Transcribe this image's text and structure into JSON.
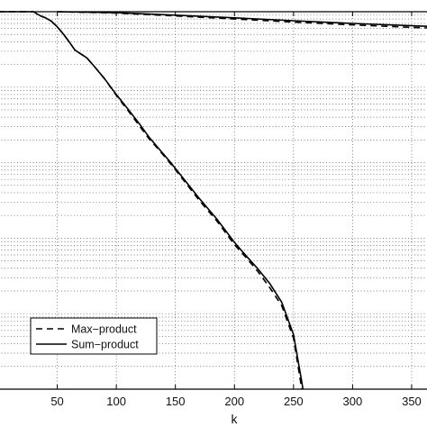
{
  "chart_data": {
    "type": "line",
    "title": "",
    "xlabel": "k",
    "ylabel": "",
    "xlim": [
      0,
      363
    ],
    "xticks": [
      50,
      100,
      150,
      200,
      250,
      300,
      350
    ],
    "xtick_labels": [
      "50",
      "100",
      "150",
      "200",
      "250",
      "300",
      "350"
    ],
    "y_scale": "log",
    "ylim": [
      1e-05,
      1
    ],
    "grid": true,
    "legend_position": "bottom-left",
    "series": [
      {
        "name": "Max−product",
        "style": "dashed",
        "color": "#000000",
        "x": [
          0,
          30,
          33,
          36,
          40,
          45,
          50,
          55,
          60,
          65,
          75,
          80,
          90,
          100,
          110,
          120,
          128,
          135,
          145,
          155,
          170,
          185,
          200,
          210,
          220,
          230,
          240,
          250,
          256,
          257
        ],
        "y": [
          1.0,
          1.0,
          0.93,
          0.88,
          0.83,
          0.75,
          0.63,
          0.51,
          0.4,
          0.31,
          0.245,
          0.2,
          0.13,
          0.078,
          0.049,
          0.03,
          0.0205,
          0.0155,
          0.0101,
          0.0064,
          0.0032,
          0.0017,
          0.00082,
          0.00055,
          0.00036,
          0.00022,
          0.000128,
          4.75e-05,
          1.25e-05,
          1e-05
        ]
      },
      {
        "name": "Sum−product",
        "style": "solid",
        "color": "#000000",
        "x": [
          0,
          30,
          33,
          36,
          40,
          45,
          50,
          55,
          60,
          65,
          75,
          80,
          90,
          100,
          110,
          120,
          128,
          135,
          145,
          155,
          170,
          185,
          200,
          210,
          220,
          230,
          240,
          250,
          257,
          258
        ],
        "y": [
          1.0,
          1.0,
          0.93,
          0.88,
          0.83,
          0.75,
          0.63,
          0.51,
          0.4,
          0.31,
          0.245,
          0.2,
          0.13,
          0.08,
          0.051,
          0.032,
          0.0215,
          0.016,
          0.0105,
          0.0067,
          0.0034,
          0.0018,
          0.00088,
          0.00058,
          0.00039,
          0.00025,
          0.000142,
          5.3e-05,
          1.25e-05,
          1e-05
        ]
      },
      {
        "name": "",
        "style": "dashed",
        "color": "#000000",
        "x": [
          50,
          100,
          150,
          200,
          250,
          300,
          363
        ],
        "y": [
          1.0,
          0.96,
          0.88,
          0.8,
          0.73,
          0.67,
          0.61
        ]
      },
      {
        "name": "",
        "style": "solid",
        "color": "#000000",
        "x": [
          50,
          100,
          150,
          200,
          250,
          300,
          363
        ],
        "y": [
          1.0,
          0.97,
          0.9,
          0.83,
          0.76,
          0.7,
          0.64
        ]
      }
    ]
  }
}
